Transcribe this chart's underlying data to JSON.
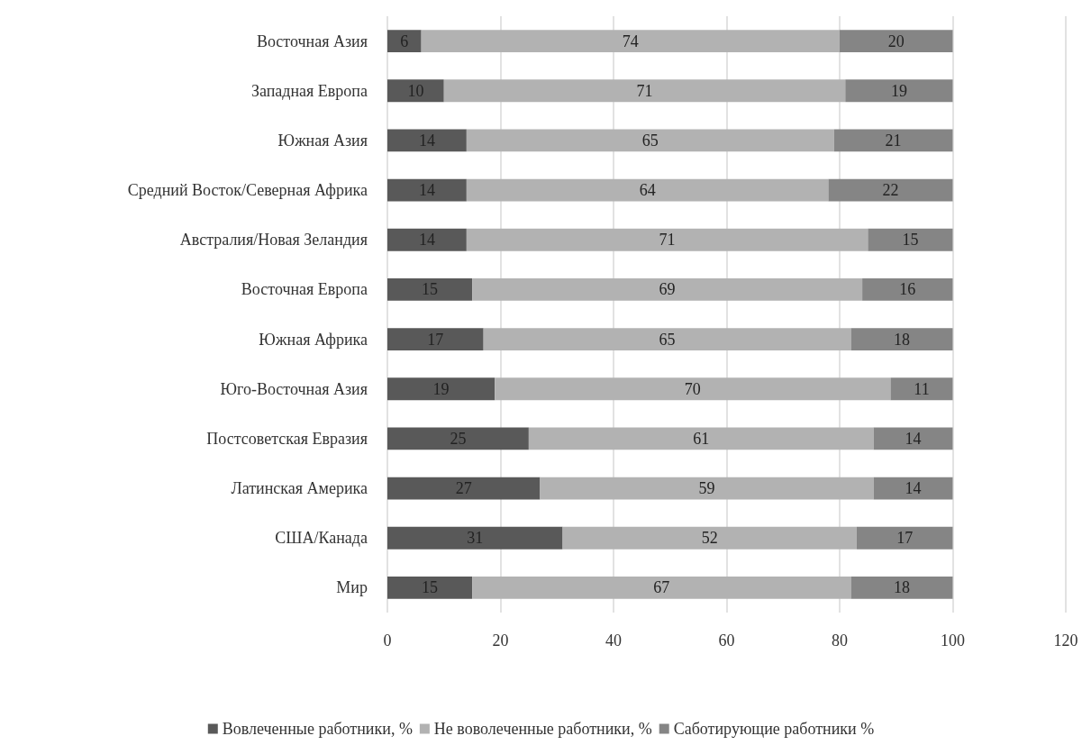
{
  "chart_data": {
    "type": "bar",
    "orientation": "horizontal",
    "stacked": true,
    "categories": [
      "Восточная Азия",
      "Западная Европа",
      "Южная Азия",
      "Средний Восток/Северная Африка",
      "Австралия/Новая Зеландия",
      "Восточная Европа",
      "Южная Африка",
      "Юго-Восточная Азия",
      "Постсоветская Евразия",
      "Латинская Америка",
      "США/Канада",
      "Мир"
    ],
    "series": [
      {
        "name": "Вовлеченные работники, %",
        "color": "#595959",
        "values": [
          6,
          10,
          14,
          14,
          14,
          15,
          17,
          19,
          25,
          27,
          31,
          15
        ]
      },
      {
        "name": "Не воволеченные работники, %",
        "color": "#b2b2b2",
        "values": [
          74,
          71,
          65,
          64,
          71,
          69,
          65,
          70,
          61,
          59,
          52,
          67
        ]
      },
      {
        "name": "Саботирующие работники %",
        "color": "#858585",
        "values": [
          20,
          19,
          21,
          22,
          15,
          16,
          18,
          11,
          14,
          14,
          17,
          18
        ]
      }
    ],
    "xlim": [
      0,
      120
    ],
    "xticks": [
      0,
      20,
      40,
      60,
      80,
      100,
      120
    ],
    "grid": "x",
    "legend": "bottom",
    "data_labels": true
  }
}
